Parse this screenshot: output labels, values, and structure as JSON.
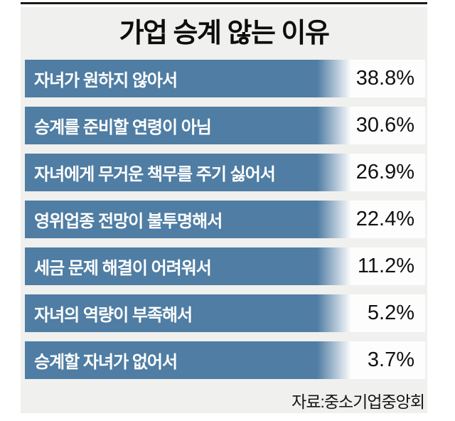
{
  "title": "가업 승계 않는 이유",
  "source": "자료:중소기업중앙회",
  "colors": {
    "bar": "#4f7da3",
    "panel_background": "#f0f0ee",
    "row_background": "#fdfdfd",
    "top_rule": "#1b1b1b",
    "label_text": "#ffffff",
    "value_text": "#111111"
  },
  "rows": [
    {
      "label": "자녀가 원하지 않아서",
      "value": "38.8%"
    },
    {
      "label": "승계를 준비할 연령이 아님",
      "value": "30.6%"
    },
    {
      "label": "자녀에게 무거운 책무를 주기 싫어서",
      "value": "26.9%"
    },
    {
      "label": "영위업종 전망이 불투명해서",
      "value": "22.4%"
    },
    {
      "label": "세금 문제 해결이 어려워서",
      "value": "11.2%"
    },
    {
      "label": "자녀의 역량이 부족해서",
      "value": "5.2%"
    },
    {
      "label": "승계할 자녀가 없어서",
      "value": "3.7%"
    }
  ],
  "chart_data": {
    "type": "bar",
    "orientation": "horizontal",
    "title": "가업 승계 않는 이유",
    "categories": [
      "자녀가 원하지 않아서",
      "승계를 준비할 연령이 아님",
      "자녀에게 무거운 책무를 주기 싫어서",
      "영위업종 전망이 불투명해서",
      "세금 문제 해결이 어려워서",
      "자녀의 역량이 부족해서",
      "승계할 자녀가 없어서"
    ],
    "values": [
      38.8,
      30.6,
      26.9,
      22.4,
      11.2,
      5.2,
      3.7
    ],
    "value_suffix": "%",
    "xlabel": "",
    "ylabel": "",
    "grid": false,
    "legend": false,
    "source": "자료:중소기업중앙회",
    "layout_note": "bars drawn equal length as label backgrounds with right-edge fade; values printed right-aligned in white column"
  }
}
